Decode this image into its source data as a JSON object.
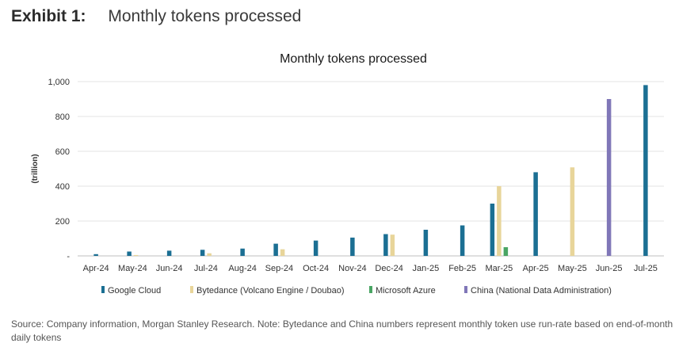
{
  "exhibit": {
    "label": "Exhibit 1:",
    "title": "Monthly tokens processed"
  },
  "source_note": "Source: Company information, Morgan Stanley Research. Note: Bytedance and China numbers represent monthly token use run-rate based on end-of-month daily tokens",
  "chart_data": {
    "type": "bar",
    "title": "Monthly tokens processed",
    "ylabel": "(trillion)",
    "xlabel": "",
    "ylim": [
      0,
      1000
    ],
    "yticks": [
      0,
      200,
      400,
      600,
      800,
      1000
    ],
    "ytick_labels": [
      "-",
      "200",
      "400",
      "600",
      "800",
      "1,000"
    ],
    "grid": true,
    "legend_position": "bottom",
    "categories": [
      "Apr-24",
      "May-24",
      "Jun-24",
      "Jul-24",
      "Aug-24",
      "Sep-24",
      "Oct-24",
      "Nov-24",
      "Dec-24",
      "Jan-25",
      "Feb-25",
      "Mar-25",
      "Apr-25",
      "May-25",
      "Jun-25",
      "Jul-25"
    ],
    "series": [
      {
        "name": "Google Cloud",
        "color": "#1b6f93",
        "values": [
          10,
          25,
          30,
          35,
          42,
          70,
          88,
          105,
          125,
          150,
          175,
          300,
          480,
          null,
          null,
          980
        ]
      },
      {
        "name": "Bytedance (Volcano Engine / Doubao)",
        "color": "#e8d59a",
        "values": [
          null,
          5,
          null,
          15,
          null,
          38,
          null,
          null,
          122,
          null,
          null,
          400,
          null,
          508,
          null,
          null
        ]
      },
      {
        "name": "Microsoft Azure",
        "color": "#4aa564",
        "values": [
          null,
          null,
          null,
          null,
          null,
          null,
          null,
          null,
          null,
          null,
          null,
          50,
          null,
          null,
          null,
          null
        ]
      },
      {
        "name": "China (National Data Administration)",
        "color": "#8077b8",
        "values": [
          null,
          null,
          null,
          null,
          null,
          null,
          null,
          null,
          null,
          null,
          null,
          null,
          null,
          null,
          900,
          null
        ]
      }
    ]
  }
}
